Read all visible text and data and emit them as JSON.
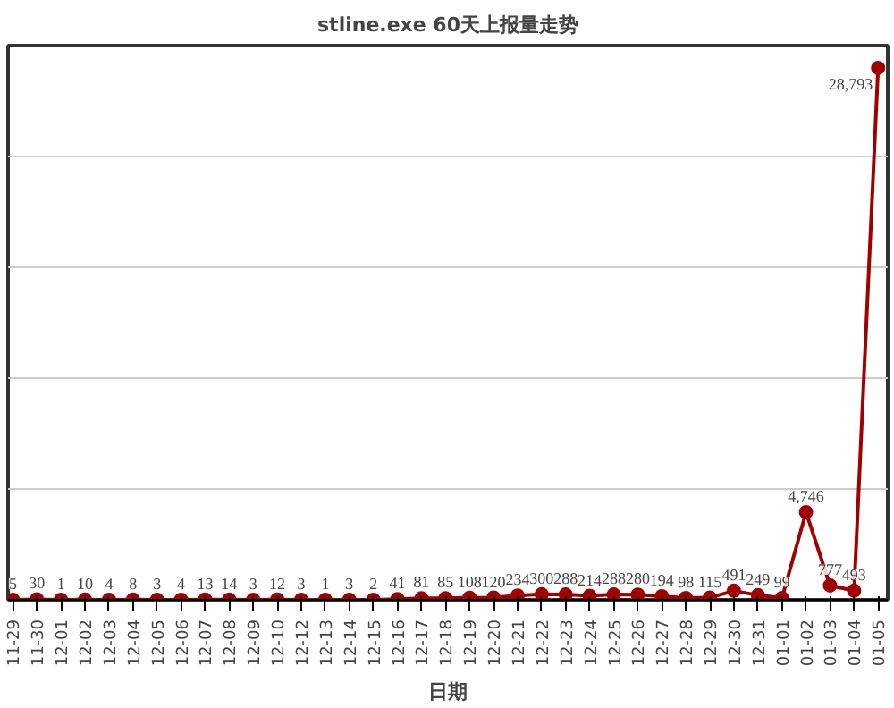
{
  "chart_data": {
    "type": "line",
    "title": "stline.exe 60天上报量走势",
    "xlabel": "日期",
    "categories": [
      "11-29",
      "11-30",
      "12-01",
      "12-02",
      "12-03",
      "12-04",
      "12-05",
      "12-06",
      "12-07",
      "12-08",
      "12-09",
      "12-10",
      "12-12",
      "12-13",
      "12-14",
      "12-15",
      "12-16",
      "12-17",
      "12-18",
      "12-19",
      "12-20",
      "12-21",
      "12-22",
      "12-23",
      "12-24",
      "12-25",
      "12-26",
      "12-27",
      "12-28",
      "12-29",
      "12-30",
      "12-31",
      "01-01",
      "01-02",
      "01-03",
      "01-04",
      "01-05"
    ],
    "series": [
      {
        "color": "#a00000",
        "values": [
          5,
          30,
          1,
          10,
          4,
          8,
          3,
          4,
          13,
          14,
          3,
          12,
          3,
          1,
          3,
          2,
          41,
          81,
          85,
          108,
          120,
          234,
          300,
          288,
          214,
          288,
          280,
          194,
          98,
          115,
          491,
          249,
          99,
          4746,
          777,
          493,
          28793
        ],
        "value_labels": [
          "5",
          "30",
          "1",
          "10",
          "4",
          "8",
          "3",
          "4",
          "13",
          "14",
          "3",
          "12",
          "3",
          "1",
          "3",
          "2",
          "41",
          "81",
          "85",
          "108",
          "120",
          "234",
          "300",
          "288",
          "214",
          "288",
          "280",
          "194",
          "98",
          "115",
          "491",
          "249",
          "99",
          "4,746",
          "777",
          "493",
          "28,793"
        ]
      }
    ],
    "ylim": [
      0,
      30000
    ],
    "yticks": [
      {
        "value": 0,
        "label": null
      },
      {
        "value": 6000,
        "label": null
      },
      {
        "value": 12000,
        "label": null
      },
      {
        "value": 18000,
        "label": null
      },
      {
        "value": 24000,
        "label": null
      },
      {
        "value": 30000,
        "label": null
      }
    ],
    "tick_labels": "x",
    "grid": "y",
    "marker": "circle",
    "line_style": "solid"
  }
}
